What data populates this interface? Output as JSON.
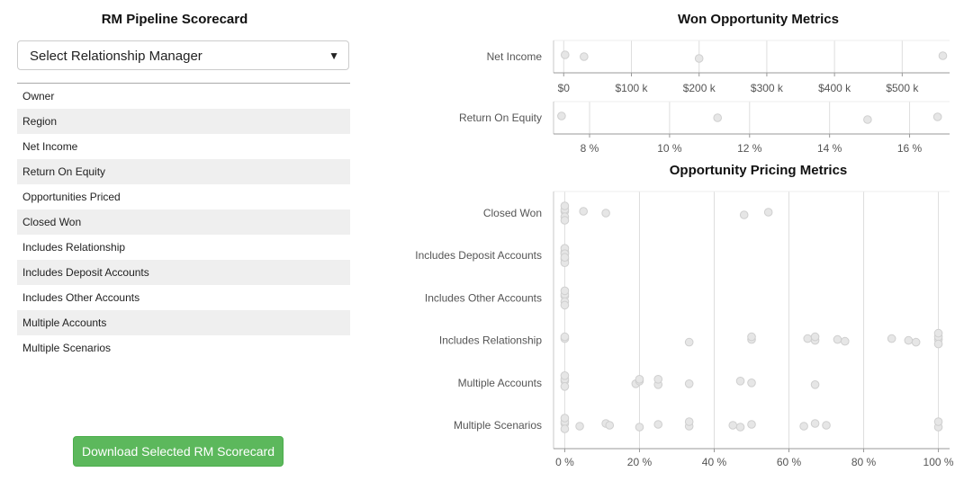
{
  "scorecard": {
    "title": "RM Pipeline Scorecard",
    "select_label": "Select Relationship Manager",
    "fields": [
      "Owner",
      "Region",
      "Net Income",
      "Return On Equity",
      "Opportunities Priced",
      "Closed Won",
      "Includes Relationship",
      "Includes Deposit Accounts",
      "Includes Other Accounts",
      "Multiple Accounts",
      "Multiple Scenarios"
    ],
    "download_label": "Download Selected RM Scorecard",
    "button_color": "#5cb85c"
  },
  "chart_data": [
    {
      "type": "scatter",
      "title": "Won Opportunity Metrics",
      "category": "Net Income",
      "xlim": [
        -15000,
        570000
      ],
      "ticks": [
        0,
        100000,
        200000,
        300000,
        400000,
        500000
      ],
      "tick_labels": [
        "$0",
        "$100 k",
        "$200 k",
        "$300 k",
        "$400 k",
        "$500 k"
      ],
      "values": [
        2000,
        30000,
        200000,
        560000
      ],
      "grid": true
    },
    {
      "type": "scatter",
      "category": "Return On Equity",
      "xlim": [
        7.1,
        17.0
      ],
      "ticks": [
        8,
        10,
        12,
        14,
        16
      ],
      "tick_labels": [
        "8 %",
        "10 %",
        "12 %",
        "14 %",
        "16 %"
      ],
      "values": [
        7.3,
        11.2,
        14.95,
        16.7
      ],
      "grid": true
    },
    {
      "type": "scatter",
      "title": "Opportunity Pricing Metrics",
      "xlim": [
        -3,
        103
      ],
      "ticks": [
        0,
        20,
        40,
        60,
        80,
        100
      ],
      "tick_labels": [
        "0 %",
        "20 %",
        "40 %",
        "60 %",
        "80 %",
        "100 %"
      ],
      "grid": true,
      "series": [
        {
          "category": "Closed Won",
          "values": [
            0,
            0,
            0,
            0,
            0,
            5,
            11,
            48,
            54.5
          ]
        },
        {
          "category": "Includes Deposit Accounts",
          "values": [
            0,
            0,
            0,
            0,
            0,
            0,
            0
          ]
        },
        {
          "category": "Includes Other Accounts",
          "values": [
            0,
            0,
            0,
            0,
            0
          ]
        },
        {
          "category": "Includes Relationship",
          "values": [
            0,
            0,
            33.3,
            50,
            50,
            65,
            67,
            67,
            73,
            75,
            87.5,
            92,
            94,
            100,
            100,
            100,
            100
          ]
        },
        {
          "category": "Multiple Accounts",
          "values": [
            0,
            0,
            0,
            0,
            19,
            20,
            20,
            25,
            25,
            33.3,
            47,
            50,
            67
          ]
        },
        {
          "category": "Multiple Scenarios",
          "values": [
            0,
            0,
            0,
            0,
            4,
            11,
            12,
            20,
            25,
            33.3,
            33.3,
            45,
            47,
            50,
            64,
            67,
            70,
            100,
            100
          ]
        }
      ]
    }
  ]
}
